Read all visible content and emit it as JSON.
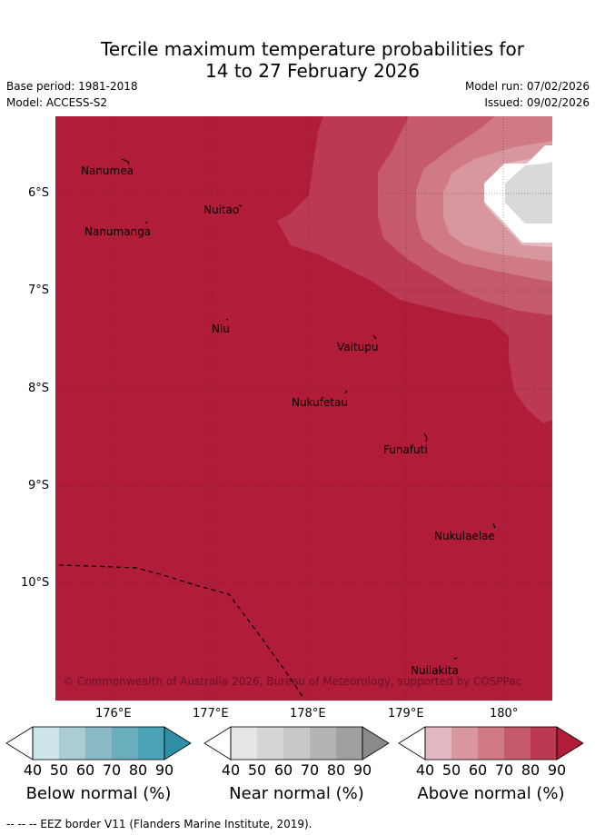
{
  "title_line1": "Tercile maximum temperature probabilities for",
  "title_line2": "14 to 27 February 2026",
  "base_period": "Base period: 1981-2018",
  "model": "Model: ACCESS-S2",
  "model_run": "Model run: 07/02/2026",
  "issued": "Issued: 09/02/2026",
  "copyright": "© Commonwealth of Australia 2026, Bureau of Meteorology, supported by COSPPac",
  "footer": "--  --  -- EEZ border V11 (Flanders Marine Institute, 2019).",
  "lat_labels": [
    "6°S",
    "7°S",
    "8°S",
    "9°S",
    "10°S"
  ],
  "lon_labels": [
    "176°E",
    "177°E",
    "178°E",
    "179°E",
    "180°"
  ],
  "places": [
    {
      "name": "Nanumea"
    },
    {
      "name": "Nuitao"
    },
    {
      "name": "Nanumanga"
    },
    {
      "name": "Niu"
    },
    {
      "name": "Vaitupu"
    },
    {
      "name": "Nukufetau"
    },
    {
      "name": "Funafuti"
    },
    {
      "name": "Nukulaelae"
    },
    {
      "name": "Nuilakita"
    }
  ],
  "colorbars": {
    "ticks": [
      "40",
      "50",
      "60",
      "70",
      "80",
      "90"
    ],
    "below": {
      "label": "Below normal (%)",
      "colors": [
        "#ffffff",
        "#cde4ea",
        "#aacdd4",
        "#8ab9c6",
        "#6aaebe",
        "#4aa3b6",
        "#2f8fa6"
      ]
    },
    "near": {
      "label": "Near normal (%)",
      "colors": [
        "#ffffff",
        "#e6e6e6",
        "#d6d6d6",
        "#c8c8c8",
        "#b4b4b4",
        "#a0a0a0",
        "#8a8a8a"
      ]
    },
    "above": {
      "label": "Above normal (%)",
      "colors": [
        "#ffffff",
        "#e3b9c1",
        "#d8969f",
        "#d07a86",
        "#c45a6a",
        "#bb3a52",
        "#b11d39"
      ]
    }
  }
}
